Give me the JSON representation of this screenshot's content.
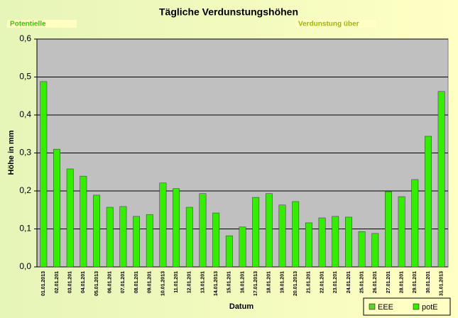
{
  "chart_data": {
    "type": "bar",
    "title": "Tägliche Verdunstungshöhen",
    "annotations": [
      "Potentielle",
      "Verdunstung über"
    ],
    "y_label": "Höhe in mm",
    "x_label": "Datum",
    "categories": [
      "01.01.2013",
      "02.01.201",
      "03.01.201",
      "04.01.201",
      "05.01.2013",
      "06.01.201",
      "07.01.201",
      "08.01.201",
      "09.01.201",
      "10.01.2013",
      "11.01.201",
      "12.01.201",
      "13.01.201",
      "14.01.2013",
      "15.01.201",
      "16.01.201",
      "17.01.2013",
      "18.01.201",
      "19.01.201",
      "20.01.2013",
      "21.01.201",
      "22.01.201",
      "23.01.201",
      "24.01.201",
      "25.01.201",
      "26.01.201",
      "27.01.201",
      "28.01.201",
      "29.01.201",
      "30.01.201",
      "31.01.2013"
    ],
    "series": [
      {
        "name": "potE",
        "color": "#33ee00",
        "values": [
          0.488,
          0.31,
          0.258,
          0.239,
          0.189,
          0.157,
          0.159,
          0.133,
          0.138,
          0.221,
          0.206,
          0.157,
          0.193,
          0.142,
          0.082,
          0.105,
          0.183,
          0.193,
          0.163,
          0.172,
          0.116,
          0.129,
          0.133,
          0.131,
          0.093,
          0.088,
          0.198,
          0.185,
          0.23,
          0.344,
          0.462
        ]
      }
    ],
    "legend": [
      {
        "name": "EEE",
        "color": "#66cc33"
      },
      {
        "name": "potE",
        "color": "#33ee00"
      }
    ],
    "ylim": [
      0,
      0.6
    ],
    "yticks": [
      {
        "value": 0,
        "label": "0,0"
      },
      {
        "value": 0.1,
        "label": "0,1"
      },
      {
        "value": 0.2,
        "label": "0,2"
      },
      {
        "value": 0.3,
        "label": "0,3"
      },
      {
        "value": 0.4,
        "label": "0,4"
      },
      {
        "value": 0.5,
        "label": "0,5"
      },
      {
        "value": 0.6,
        "label": "0,6"
      }
    ],
    "grid": true
  }
}
